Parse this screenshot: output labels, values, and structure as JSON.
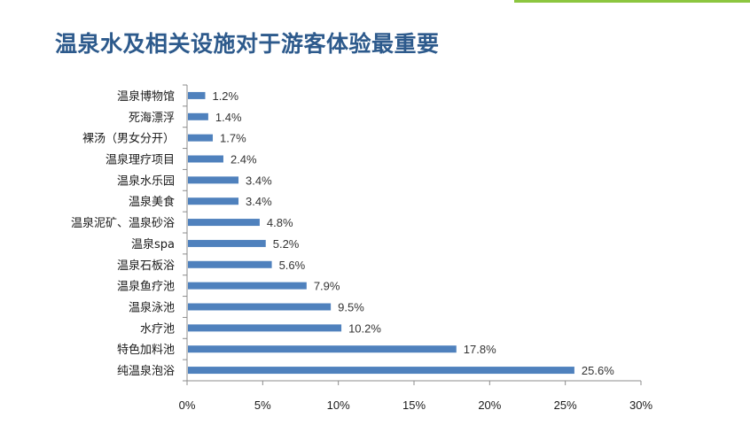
{
  "slide": {
    "title": "温泉水及相关设施对于游客体验最重要"
  },
  "chart_data": {
    "type": "bar",
    "orientation": "horizontal",
    "categories": [
      "温泉博物馆",
      "死海漂浮",
      "裸汤（男女分开）",
      "温泉理疗项目",
      "温泉水乐园",
      "温泉美食",
      "温泉泥矿、温泉砂浴",
      "温泉spa",
      "温泉石板浴",
      "温泉鱼疗池",
      "温泉泳池",
      "水疗池",
      "特色加料池",
      "纯温泉泡浴"
    ],
    "values": [
      1.2,
      1.4,
      1.7,
      2.4,
      3.4,
      3.4,
      4.8,
      5.2,
      5.6,
      7.9,
      9.5,
      10.2,
      17.8,
      25.6
    ],
    "value_labels": [
      "1.2%",
      "1.4%",
      "1.7%",
      "2.4%",
      "3.4%",
      "3.4%",
      "4.8%",
      "5.2%",
      "5.6%",
      "7.9%",
      "9.5%",
      "10.2%",
      "17.8%",
      "25.6%"
    ],
    "xlim": [
      0,
      30
    ],
    "xticks": [
      0,
      5,
      10,
      15,
      20,
      25,
      30
    ],
    "xtick_labels": [
      "0%",
      "5%",
      "10%",
      "15%",
      "20%",
      "25%",
      "30%"
    ],
    "bar_color": "#4f81bd",
    "grid": false,
    "legend": "none"
  }
}
